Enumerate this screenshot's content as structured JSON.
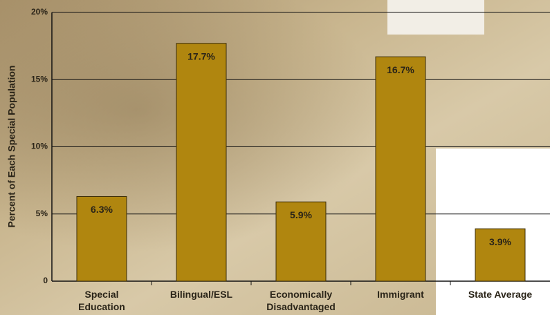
{
  "chart_data": {
    "type": "bar",
    "y_label": "Percent of Each Special Population",
    "categories": [
      "Special\nEducation",
      "Bilingual/ESL",
      "Economically\nDisadvantaged",
      "Immigrant",
      "State Average"
    ],
    "values": [
      6.3,
      17.7,
      5.9,
      16.7,
      3.9
    ],
    "value_labels": [
      "6.3%",
      "17.7%",
      "5.9%",
      "16.7%",
      "3.9%"
    ],
    "color": "#b0860f",
    "ylim": [
      0,
      20
    ],
    "yticks": [
      0,
      {
        "value": 5,
        "label": "5%"
      },
      {
        "value": 10,
        "label": "10%"
      },
      {
        "value": 15,
        "label": "15%"
      },
      {
        "value": 20,
        "label": "20%"
      }
    ],
    "grid": true
  }
}
